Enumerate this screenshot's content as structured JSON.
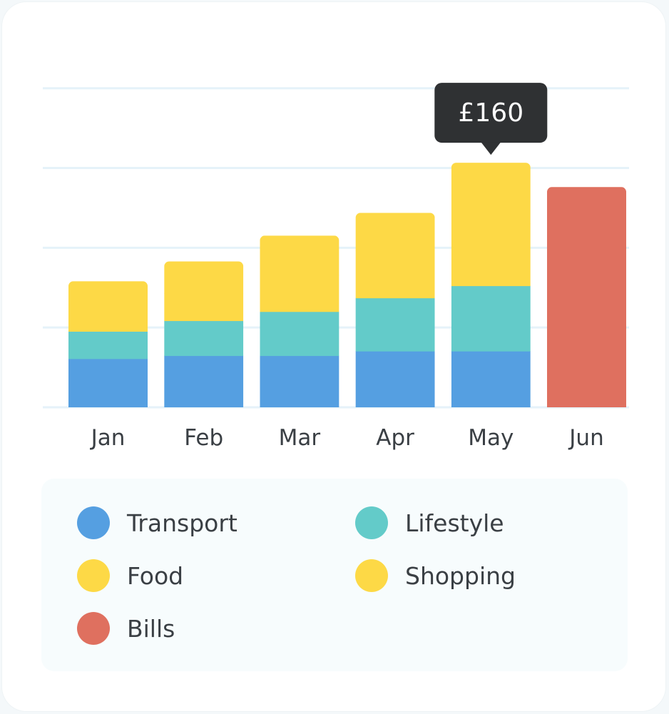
{
  "chart_data": {
    "type": "bar",
    "stacked": true,
    "categories": [
      "Jan",
      "Feb",
      "Mar",
      "Apr",
      "May",
      "Jun"
    ],
    "series": [
      {
        "name": "Transport",
        "color": "#559FE1",
        "values": [
          32,
          34,
          34,
          37,
          37,
          null
        ]
      },
      {
        "name": "Lifestyle",
        "color": "#63CBC9",
        "values": [
          18,
          23,
          29,
          35,
          43,
          null
        ]
      },
      {
        "name": "Food",
        "color": "#FDD946",
        "values": [
          16,
          18,
          24,
          31,
          41,
          null
        ]
      },
      {
        "name": "Shopping",
        "color": "#FDD946",
        "values": [
          17,
          21,
          26,
          25,
          40,
          null
        ]
      },
      {
        "name": "Bills",
        "color": "#DF705F",
        "values": [
          null,
          null,
          null,
          null,
          null,
          145
        ]
      }
    ],
    "ylim": [
      0,
      183
    ],
    "grid": true,
    "legend_position": "bottom",
    "tooltip": {
      "category": "May",
      "text": "£160"
    }
  },
  "legend": {
    "items": [
      {
        "label": "Transport",
        "color": "#559FE1"
      },
      {
        "label": "Lifestyle",
        "color": "#63CBC9"
      },
      {
        "label": "Food",
        "color": "#FDD946"
      },
      {
        "label": "Shopping",
        "color": "#FDD946"
      },
      {
        "label": "Bills",
        "color": "#DF705F"
      }
    ]
  }
}
